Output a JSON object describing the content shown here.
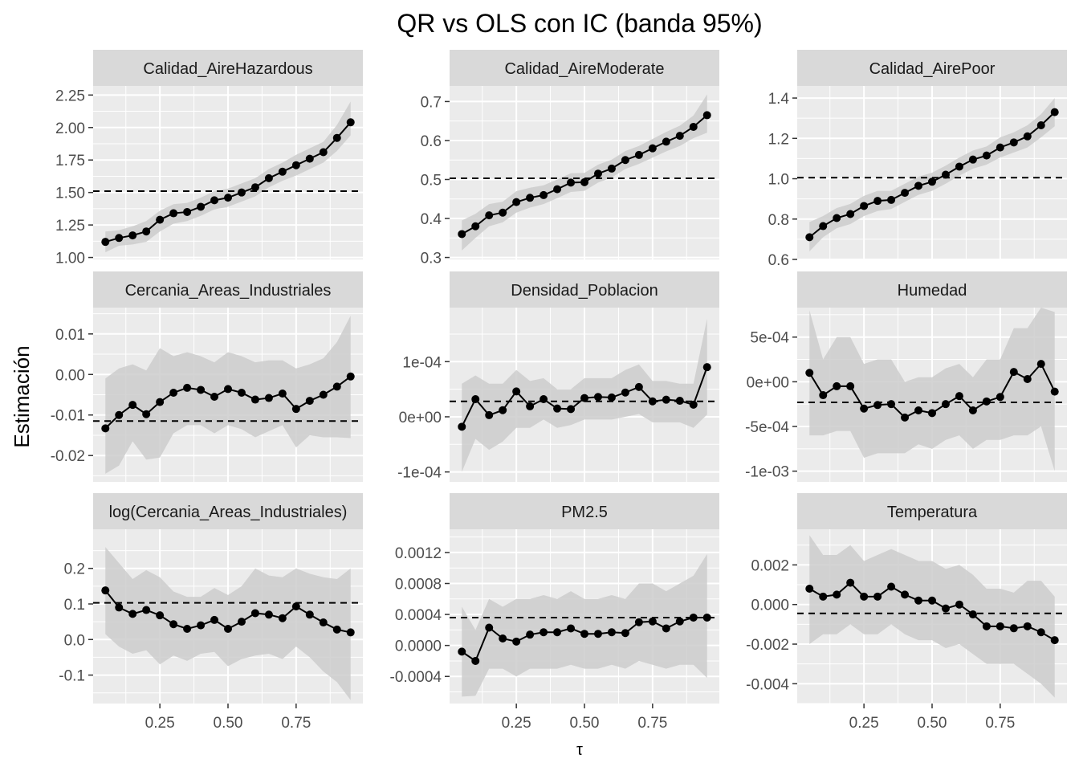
{
  "title": "QR vs OLS con IC (banda 95%)",
  "xlabel": "τ",
  "ylabel": "Estimación",
  "colors": {
    "panel_bg": "#EBEBEB",
    "strip_bg": "#D9D9D9",
    "grid": "#FFFFFF",
    "band": "#CCCCCC",
    "line": "#000000",
    "text": "#000000",
    "tick_text": "#4D4D4D"
  },
  "chart_data": {
    "type": "line",
    "layout": "facet grid 3x3, free y scales, shared x",
    "x": [
      0.05,
      0.1,
      0.15,
      0.2,
      0.25,
      0.3,
      0.35,
      0.4,
      0.45,
      0.5,
      0.55,
      0.6,
      0.65,
      0.7,
      0.75,
      0.8,
      0.85,
      0.9,
      0.95
    ],
    "x_ticks": [
      0.25,
      0.5,
      0.75
    ],
    "x_tick_labels": [
      "0.25",
      "0.50",
      "0.75"
    ],
    "xlim": [
      0.005,
      0.995
    ],
    "series_description": "QR estimate (points + line), 95% CI band (grey ribbon), OLS estimate (dashed horizontal line)",
    "panels": [
      {
        "title": "Calidad_AireHazardous",
        "ylim": [
          0.985,
          2.32
        ],
        "y_ticks": [
          1.0,
          1.25,
          1.5,
          1.75,
          2.0,
          2.25
        ],
        "y_tick_labels": [
          "1.00",
          "1.25",
          "1.50",
          "1.75",
          "2.00",
          "2.25"
        ],
        "qr": [
          1.12,
          1.15,
          1.17,
          1.2,
          1.29,
          1.34,
          1.35,
          1.39,
          1.44,
          1.46,
          1.5,
          1.54,
          1.61,
          1.66,
          1.71,
          1.76,
          1.81,
          1.92,
          2.04
        ],
        "lower": [
          1.04,
          1.09,
          1.1,
          1.12,
          1.2,
          1.26,
          1.28,
          1.32,
          1.37,
          1.39,
          1.43,
          1.47,
          1.54,
          1.59,
          1.63,
          1.68,
          1.73,
          1.82,
          1.94
        ],
        "upper": [
          1.2,
          1.21,
          1.24,
          1.28,
          1.36,
          1.41,
          1.42,
          1.46,
          1.51,
          1.53,
          1.57,
          1.61,
          1.68,
          1.73,
          1.79,
          1.84,
          1.89,
          2.02,
          2.2
        ],
        "ols": 1.51
      },
      {
        "title": "Calidad_AireModerate",
        "ylim": [
          0.295,
          0.74
        ],
        "y_ticks": [
          0.3,
          0.4,
          0.5,
          0.6,
          0.7
        ],
        "y_tick_labels": [
          "0.3",
          "0.4",
          "0.5",
          "0.6",
          "0.7"
        ],
        "qr": [
          0.36,
          0.38,
          0.408,
          0.415,
          0.442,
          0.453,
          0.46,
          0.475,
          0.492,
          0.493,
          0.515,
          0.528,
          0.55,
          0.563,
          0.58,
          0.597,
          0.612,
          0.635,
          0.665
        ],
        "lower": [
          0.318,
          0.35,
          0.38,
          0.39,
          0.415,
          0.428,
          0.437,
          0.452,
          0.468,
          0.471,
          0.492,
          0.505,
          0.527,
          0.54,
          0.556,
          0.572,
          0.586,
          0.606,
          0.62
        ],
        "upper": [
          0.395,
          0.412,
          0.437,
          0.443,
          0.47,
          0.479,
          0.485,
          0.5,
          0.516,
          0.517,
          0.538,
          0.551,
          0.573,
          0.586,
          0.604,
          0.622,
          0.638,
          0.664,
          0.718
        ],
        "ols": 0.503
      },
      {
        "title": "Calidad_AirePoor",
        "ylim": [
          0.6,
          1.46
        ],
        "y_ticks": [
          0.6,
          0.8,
          1.0,
          1.2,
          1.4
        ],
        "y_tick_labels": [
          "0.6",
          "0.8",
          "1.0",
          "1.2",
          "1.4"
        ],
        "qr": [
          0.71,
          0.765,
          0.805,
          0.825,
          0.865,
          0.89,
          0.895,
          0.93,
          0.965,
          0.985,
          1.02,
          1.06,
          1.095,
          1.115,
          1.155,
          1.18,
          1.21,
          1.265,
          1.33
        ],
        "lower": [
          0.64,
          0.71,
          0.755,
          0.775,
          0.815,
          0.84,
          0.85,
          0.885,
          0.92,
          0.94,
          0.975,
          1.015,
          1.05,
          1.07,
          1.105,
          1.13,
          1.155,
          1.205,
          1.26
        ],
        "upper": [
          0.785,
          0.815,
          0.855,
          0.875,
          0.915,
          0.94,
          0.94,
          0.975,
          1.01,
          1.03,
          1.065,
          1.105,
          1.14,
          1.16,
          1.205,
          1.23,
          1.265,
          1.32,
          1.4
        ],
        "ols": 1.005
      },
      {
        "title": "Cercania_Areas_Industriales",
        "ylim": [
          -0.0265,
          0.0165
        ],
        "y_ticks": [
          -0.02,
          -0.01,
          0.0,
          0.01
        ],
        "y_tick_labels": [
          "-0.02",
          "-0.01",
          "0.00",
          "0.01"
        ],
        "qr": [
          -0.0133,
          -0.01,
          -0.0075,
          -0.0098,
          -0.0068,
          -0.0045,
          -0.0033,
          -0.0038,
          -0.0055,
          -0.0036,
          -0.0045,
          -0.0062,
          -0.0058,
          -0.0047,
          -0.0085,
          -0.0065,
          -0.005,
          -0.003,
          -0.0005
        ],
        "lower": [
          -0.0245,
          -0.0225,
          -0.0165,
          -0.021,
          -0.0205,
          -0.0145,
          -0.0125,
          -0.0125,
          -0.0145,
          -0.0125,
          -0.0135,
          -0.0155,
          -0.014,
          -0.0125,
          -0.018,
          -0.015,
          -0.0155,
          -0.0155,
          -0.0157
        ],
        "upper": [
          -0.001,
          0.0015,
          0.0025,
          0.001,
          0.0065,
          0.0045,
          0.0055,
          0.0045,
          0.003,
          0.0055,
          0.0045,
          0.003,
          0.0035,
          0.0035,
          0.0015,
          0.0025,
          0.004,
          0.008,
          0.0145
        ],
        "ols": -0.0115
      },
      {
        "title": "Densidad_Poblacion",
        "ylim": [
          -0.000118,
          0.000198
        ],
        "y_ticks": [
          -0.0001,
          0.0,
          0.0001
        ],
        "y_tick_labels": [
          "-1e-04",
          "0e+00",
          "1e-04"
        ],
        "qr": [
          -1.8e-05,
          3.2e-05,
          3e-06,
          1.2e-05,
          4.6e-05,
          1.9e-05,
          3.2e-05,
          1.5e-05,
          1.4e-05,
          3.4e-05,
          3.6e-05,
          3.5e-05,
          4.4e-05,
          5.4e-05,
          2.8e-05,
          3.1e-05,
          2.9e-05,
          2.2e-05,
          9e-05
        ],
        "lower": [
          -0.0001,
          -4e-05,
          -6e-05,
          -4.5e-05,
          -2e-05,
          -2e-05,
          -5e-06,
          -2e-05,
          -1.5e-05,
          -5e-06,
          -5e-06,
          -5e-06,
          0.0,
          5e-06,
          -1e-05,
          -1e-05,
          -1e-05,
          -2e-05,
          4e-06
        ],
        "upper": [
          6e-05,
          7.5e-05,
          6e-05,
          6e-05,
          8.5e-05,
          6.5e-05,
          7e-05,
          5e-05,
          5e-05,
          7e-05,
          7e-05,
          7e-05,
          8.5e-05,
          9.5e-05,
          6.5e-05,
          6.5e-05,
          6e-05,
          6e-05,
          0.000178
        ],
        "ols": 2.8e-05
      },
      {
        "title": "Humedad",
        "ylim": [
          -0.00112,
          0.00083
        ],
        "y_ticks": [
          -0.001,
          -0.0005,
          0.0,
          0.0005
        ],
        "y_tick_labels": [
          "-1e-03",
          "-5e-04",
          "0e+00",
          "5e-04"
        ],
        "qr": [
          0.0001,
          -0.00015,
          -5e-05,
          -5e-05,
          -0.0003,
          -0.00026,
          -0.00025,
          -0.0004,
          -0.00032,
          -0.00035,
          -0.00025,
          -0.00016,
          -0.00032,
          -0.00022,
          -0.00017,
          0.00011,
          3e-05,
          0.0002,
          -0.00011
        ],
        "lower": [
          -0.0006,
          -0.0006,
          -0.00055,
          -0.00055,
          -0.00085,
          -0.0008,
          -0.0008,
          -0.0008,
          -0.0007,
          -0.00075,
          -0.00065,
          -0.0006,
          -0.00075,
          -0.00065,
          -0.00065,
          -0.0006,
          -0.0006,
          -0.0005,
          -0.001
        ],
        "upper": [
          0.0008,
          0.00025,
          0.0005,
          0.0005,
          0.0002,
          0.00025,
          0.00025,
          0.0,
          5e-05,
          5e-05,
          0.00015,
          0.0002,
          5e-05,
          0.00025,
          0.00025,
          0.0006,
          0.0006,
          0.00083,
          0.00078
        ],
        "ols": -0.00023
      },
      {
        "title": "log(Cercania_Areas_Industriales)",
        "ylim": [
          -0.18,
          0.31
        ],
        "y_ticks": [
          -0.1,
          0.0,
          0.1,
          0.2
        ],
        "y_tick_labels": [
          "-0.1",
          "0.0",
          "0.1",
          "0.2"
        ],
        "qr": [
          0.138,
          0.09,
          0.072,
          0.083,
          0.068,
          0.043,
          0.03,
          0.04,
          0.055,
          0.03,
          0.05,
          0.074,
          0.07,
          0.06,
          0.093,
          0.07,
          0.048,
          0.028,
          0.02
        ],
        "lower": [
          0.015,
          -0.02,
          -0.04,
          -0.03,
          -0.07,
          -0.045,
          -0.06,
          -0.04,
          -0.035,
          -0.075,
          -0.055,
          -0.045,
          -0.04,
          -0.055,
          -0.02,
          -0.05,
          -0.09,
          -0.12,
          -0.17
        ],
        "upper": [
          0.26,
          0.215,
          0.17,
          0.195,
          0.175,
          0.135,
          0.12,
          0.12,
          0.145,
          0.125,
          0.15,
          0.2,
          0.18,
          0.175,
          0.2,
          0.185,
          0.175,
          0.17,
          0.2
        ],
        "ols": 0.103
      },
      {
        "title": "PM2.5",
        "ylim": [
          -0.00075,
          0.0015
        ],
        "y_ticks": [
          -0.0004,
          0.0,
          0.0004,
          0.0008,
          0.0012
        ],
        "y_tick_labels": [
          "-0.0004",
          "0.0000",
          "0.0004",
          "0.0008",
          "0.0012"
        ],
        "qr": [
          -8e-05,
          -0.0002,
          0.00023,
          9e-05,
          5e-05,
          0.00014,
          0.00017,
          0.00017,
          0.00022,
          0.00015,
          0.00015,
          0.00017,
          0.00016,
          0.0003,
          0.00031,
          0.00022,
          0.00031,
          0.00036,
          0.00036
        ],
        "lower": [
          -0.00066,
          -0.00065,
          -0.0003,
          -0.0003,
          -0.0004,
          -0.0003,
          -0.0003,
          -0.0003,
          -0.00025,
          -0.0003,
          -0.0003,
          -0.00025,
          -0.0003,
          -0.0002,
          -0.00025,
          -0.0003,
          -0.00025,
          -0.00025,
          -0.00042
        ],
        "upper": [
          0.0005,
          0.0002,
          0.0006,
          0.0005,
          0.0006,
          0.0006,
          0.00065,
          0.0006,
          0.0007,
          0.0006,
          0.0006,
          0.00065,
          0.0006,
          0.0008,
          0.0008,
          0.0007,
          0.0008,
          0.0009,
          0.00118
        ],
        "ols": 0.00036
      },
      {
        "title": "Temperatura",
        "ylim": [
          -0.005,
          0.0038
        ],
        "y_ticks": [
          -0.004,
          -0.002,
          0.0,
          0.002
        ],
        "y_tick_labels": [
          "-0.004",
          "-0.002",
          "0.000",
          "0.002"
        ],
        "qr": [
          0.0008,
          0.0004,
          0.0005,
          0.0011,
          0.0004,
          0.0004,
          0.0009,
          0.0005,
          0.0002,
          0.0002,
          -0.0002,
          0.0,
          -0.0005,
          -0.0011,
          -0.0011,
          -0.0012,
          -0.0011,
          -0.0014,
          -0.0018
        ],
        "lower": [
          -0.002,
          -0.0015,
          -0.0015,
          -0.001,
          -0.0015,
          -0.0015,
          -0.001,
          -0.0015,
          -0.0018,
          -0.0018,
          -0.0022,
          -0.002,
          -0.0025,
          -0.003,
          -0.003,
          -0.003,
          -0.0035,
          -0.004,
          -0.0047
        ],
        "upper": [
          0.0035,
          0.0025,
          0.0025,
          0.003,
          0.0022,
          0.0025,
          0.0028,
          0.0025,
          0.0022,
          0.0022,
          0.0018,
          0.002,
          0.0015,
          0.0008,
          0.0008,
          0.0006,
          0.0012,
          0.0012,
          0.0004
        ],
        "ols": -0.00045
      }
    ]
  }
}
